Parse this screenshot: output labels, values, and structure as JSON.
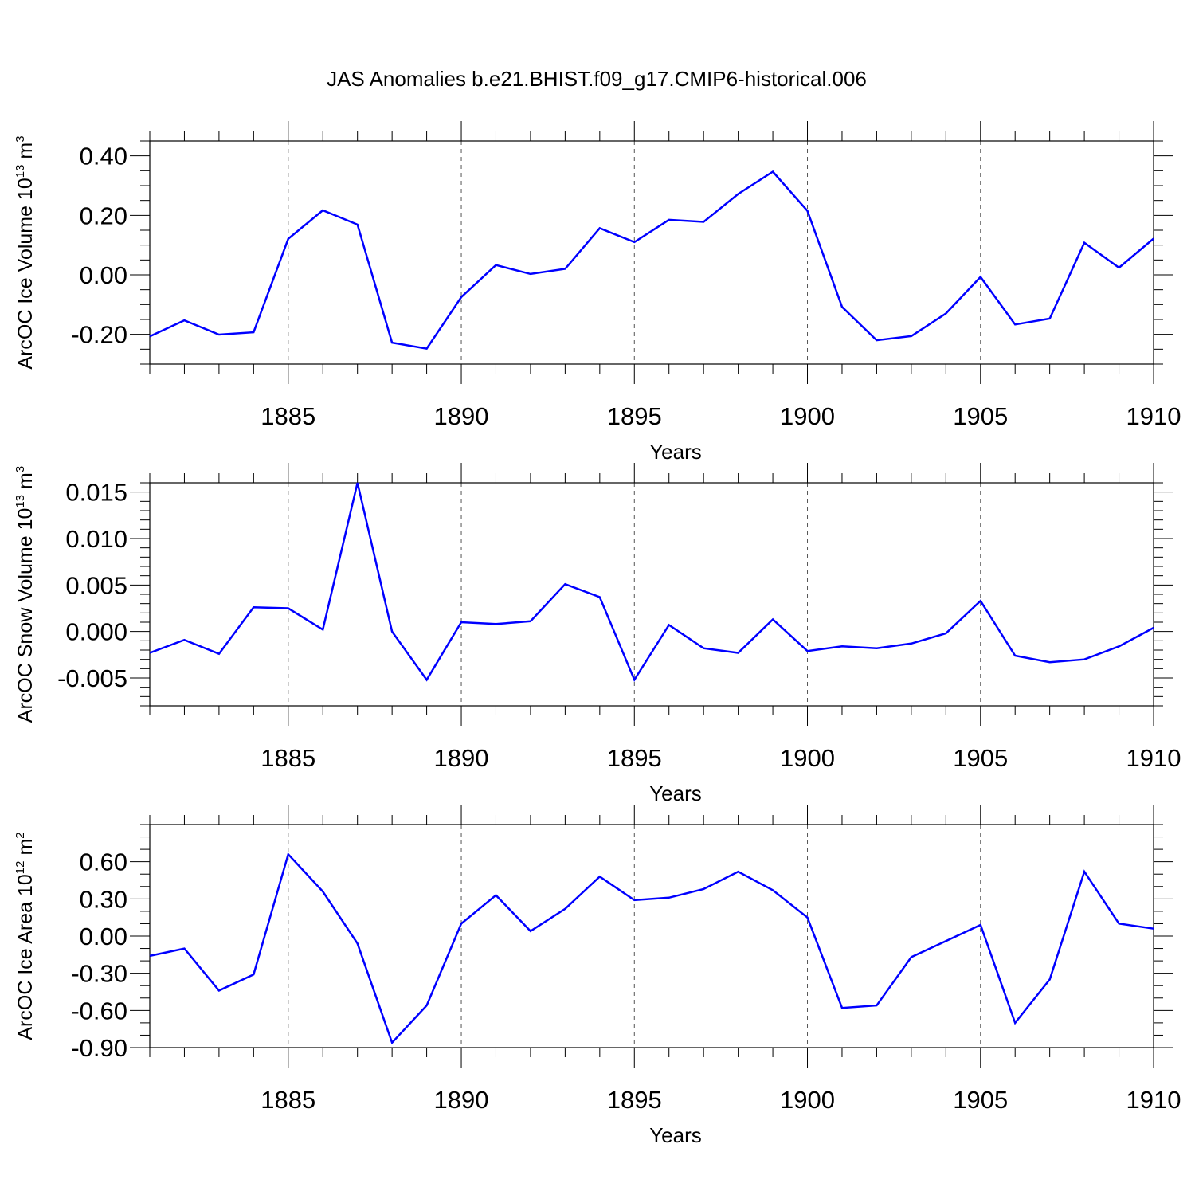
{
  "title": "JAS Anomalies b.e21.BHIST.f09_g17.CMIP6-historical.006",
  "chart_data": [
    {
      "type": "line",
      "title": "JAS Anomalies b.e21.BHIST.f09_g17.CMIP6-historical.006",
      "xlabel": "Years",
      "ylabel_main": "ArcOC Ice Volume 10",
      "ylabel_exp": "13",
      "ylabel_unit": " m",
      "ylabel_unit_exp": "3",
      "xlim": [
        1881,
        1910
      ],
      "ylim": [
        -0.3,
        0.45
      ],
      "xticks": [
        1885,
        1890,
        1895,
        1900,
        1905,
        1910
      ],
      "xtick_labels": [
        "1885",
        "1890",
        "1895",
        "1900",
        "1905",
        "1910"
      ],
      "yticks": [
        -0.2,
        0.0,
        0.2,
        0.4
      ],
      "ytick_labels": [
        "-0.20",
        "0.00",
        "0.20",
        "0.40"
      ],
      "y_minor_step": 0.05,
      "line_color": "#0000ff",
      "series": [
        {
          "name": "ArcOC Ice Volume",
          "x": [
            1881,
            1882,
            1883,
            1884,
            1885,
            1886,
            1887,
            1888,
            1889,
            1890,
            1891,
            1892,
            1893,
            1894,
            1895,
            1896,
            1897,
            1898,
            1899,
            1900,
            1901,
            1902,
            1903,
            1904,
            1905,
            1906,
            1907,
            1908,
            1909,
            1910
          ],
          "values": [
            -0.207,
            -0.153,
            -0.201,
            -0.193,
            0.121,
            0.217,
            0.169,
            -0.228,
            -0.248,
            -0.075,
            0.033,
            0.003,
            0.02,
            0.157,
            0.11,
            0.185,
            0.178,
            0.272,
            0.347,
            0.215,
            -0.108,
            -0.22,
            -0.206,
            -0.13,
            -0.007,
            -0.167,
            -0.147,
            0.108,
            0.024,
            0.122
          ]
        }
      ]
    },
    {
      "type": "line",
      "xlabel": "Years",
      "ylabel_main": "ArcOC Snow Volume 10",
      "ylabel_exp": "13",
      "ylabel_unit": " m",
      "ylabel_unit_exp": "3",
      "xlim": [
        1881,
        1910
      ],
      "ylim": [
        -0.008,
        0.016
      ],
      "xticks": [
        1885,
        1890,
        1895,
        1900,
        1905,
        1910
      ],
      "xtick_labels": [
        "1885",
        "1890",
        "1895",
        "1900",
        "1905",
        "1910"
      ],
      "yticks": [
        -0.005,
        0.0,
        0.005,
        0.01,
        0.015
      ],
      "ytick_labels": [
        "-0.005",
        "0.000",
        "0.005",
        "0.010",
        "0.015"
      ],
      "y_minor_step": 0.001,
      "line_color": "#0000ff",
      "series": [
        {
          "name": "ArcOC Snow Volume",
          "x": [
            1881,
            1882,
            1883,
            1884,
            1885,
            1886,
            1887,
            1888,
            1889,
            1890,
            1891,
            1892,
            1893,
            1894,
            1895,
            1896,
            1897,
            1898,
            1899,
            1900,
            1901,
            1902,
            1903,
            1904,
            1905,
            1906,
            1907,
            1908,
            1909,
            1910
          ],
          "values": [
            -0.0023,
            -0.0009,
            -0.0024,
            0.0026,
            0.0025,
            0.0002,
            0.016,
            0.0,
            -0.0052,
            0.001,
            0.0008,
            0.0011,
            0.0051,
            0.0037,
            -0.0052,
            0.0007,
            -0.0018,
            -0.0023,
            0.0013,
            -0.0021,
            -0.0016,
            -0.0018,
            -0.0013,
            -0.0002,
            0.0033,
            -0.0026,
            -0.0033,
            -0.003,
            -0.0016,
            0.0004
          ]
        }
      ]
    },
    {
      "type": "line",
      "xlabel": "Years",
      "ylabel_main": "ArcOC Ice Area 10",
      "ylabel_exp": "12",
      "ylabel_unit": " m",
      "ylabel_unit_exp": "2",
      "xlim": [
        1881,
        1910
      ],
      "ylim": [
        -0.9,
        0.9
      ],
      "xticks": [
        1885,
        1890,
        1895,
        1900,
        1905,
        1910
      ],
      "xtick_labels": [
        "1885",
        "1890",
        "1895",
        "1900",
        "1905",
        "1910"
      ],
      "yticks": [
        -0.9,
        -0.6,
        -0.3,
        0.0,
        0.3,
        0.6
      ],
      "ytick_labels": [
        "-0.90",
        "-0.60",
        "-0.30",
        "0.00",
        "0.30",
        "0.60"
      ],
      "y_minor_step": 0.1,
      "line_color": "#0000ff",
      "series": [
        {
          "name": "ArcOC Ice Area",
          "x": [
            1881,
            1882,
            1883,
            1884,
            1885,
            1886,
            1887,
            1888,
            1889,
            1890,
            1891,
            1892,
            1893,
            1894,
            1895,
            1896,
            1897,
            1898,
            1899,
            1900,
            1901,
            1902,
            1903,
            1904,
            1905,
            1906,
            1907,
            1908,
            1909,
            1910
          ],
          "values": [
            -0.16,
            -0.1,
            -0.44,
            -0.31,
            0.66,
            0.36,
            -0.06,
            -0.86,
            -0.56,
            0.1,
            0.33,
            0.04,
            0.22,
            0.48,
            0.29,
            0.31,
            0.38,
            0.52,
            0.37,
            0.15,
            -0.58,
            -0.56,
            -0.17,
            -0.04,
            0.09,
            -0.7,
            -0.35,
            0.52,
            0.1,
            0.06
          ]
        }
      ]
    }
  ]
}
